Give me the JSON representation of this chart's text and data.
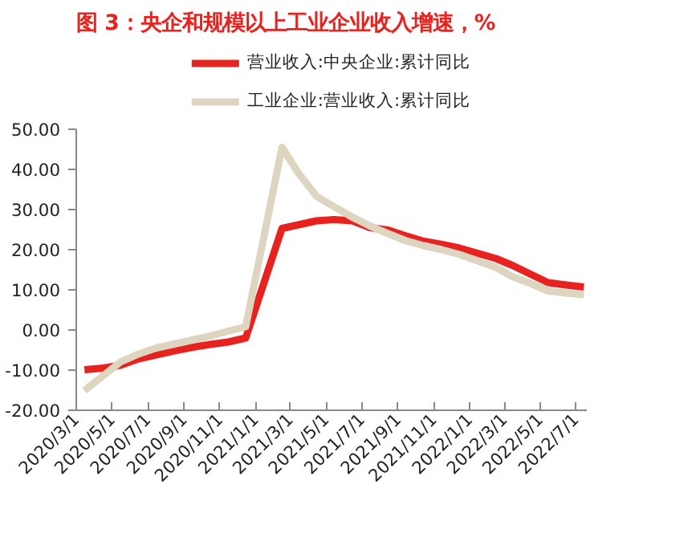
{
  "chart_data": {
    "type": "line",
    "title": "图 3：央企和规模以上工业企业收入增速，%",
    "x": [
      "2020-03-15",
      "2020-04-15",
      "2020-05-15",
      "2020-06-15",
      "2020-07-15",
      "2020-08-15",
      "2020-09-15",
      "2020-10-15",
      "2020-11-15",
      "2020-12-15",
      "2021-02-15",
      "2021-03-15",
      "2021-04-15",
      "2021-05-15",
      "2021-06-15",
      "2021-07-15",
      "2021-08-15",
      "2021-09-15",
      "2021-10-15",
      "2021-11-15",
      "2021-12-15",
      "2022-02-15",
      "2022-03-15",
      "2022-04-15",
      "2022-05-15",
      "2022-06-15",
      "2022-07-15"
    ],
    "series": [
      {
        "name": "营业收入:中央企业:累计同比",
        "color": "#e8231f",
        "values": [
          -9.9,
          -9.5,
          -8.8,
          -7.2,
          -6.2,
          -5.2,
          -4.3,
          -3.6,
          -3.0,
          -2.0,
          25.3,
          26.2,
          27.2,
          27.5,
          27.2,
          25.5,
          24.9,
          23.4,
          22.1,
          21.3,
          20.4,
          17.8,
          16.1,
          13.9,
          11.8,
          11.2,
          10.7
        ]
      },
      {
        "name": "工业企业:营业收入:累计同比",
        "color": "#ddd5c0",
        "values": [
          -15.1,
          -11.5,
          -8.0,
          -6.0,
          -4.5,
          -3.5,
          -2.5,
          -1.5,
          -0.3,
          0.8,
          45.5,
          39.1,
          33.3,
          30.7,
          28.1,
          25.9,
          24.0,
          22.2,
          21.0,
          20.0,
          18.8,
          15.6,
          13.3,
          11.6,
          9.7,
          9.2,
          8.8
        ]
      }
    ],
    "xlim": [
      "2020-03-01",
      "2022-07-20"
    ],
    "xticks": [
      {
        "value": "2020-03-01",
        "label": "2020/3/1"
      },
      {
        "value": "2020-05-01",
        "label": "2020/5/1"
      },
      {
        "value": "2020-07-01",
        "label": "2020/7/1"
      },
      {
        "value": "2020-09-01",
        "label": "2020/9/1"
      },
      {
        "value": "2020-11-01",
        "label": "2020/11/1"
      },
      {
        "value": "2021-01-01",
        "label": "2021/1/1"
      },
      {
        "value": "2021-03-01",
        "label": "2021/3/1"
      },
      {
        "value": "2021-05-01",
        "label": "2021/5/1"
      },
      {
        "value": "2021-07-01",
        "label": "2021/7/1"
      },
      {
        "value": "2021-09-01",
        "label": "2021/9/1"
      },
      {
        "value": "2021-11-01",
        "label": "2021/11/1"
      },
      {
        "value": "2022-01-01",
        "label": "2022/1/1"
      },
      {
        "value": "2022-03-01",
        "label": "2022/3/1"
      },
      {
        "value": "2022-05-01",
        "label": "2022/5/1"
      },
      {
        "value": "2022-07-01",
        "label": "2022/7/1"
      }
    ],
    "ylim": [
      -20,
      50
    ],
    "yticks": [
      {
        "value": -20,
        "label": "-20.00"
      },
      {
        "value": -10,
        "label": "-10.00"
      },
      {
        "value": 0,
        "label": "0.00"
      },
      {
        "value": 10,
        "label": "10.00"
      },
      {
        "value": 20,
        "label": "20.00"
      },
      {
        "value": 30,
        "label": "30.00"
      },
      {
        "value": 40,
        "label": "40.00"
      },
      {
        "value": 50,
        "label": "50.00"
      }
    ],
    "grid": false,
    "legend": "top",
    "marker": "none",
    "line_style": "solid"
  }
}
